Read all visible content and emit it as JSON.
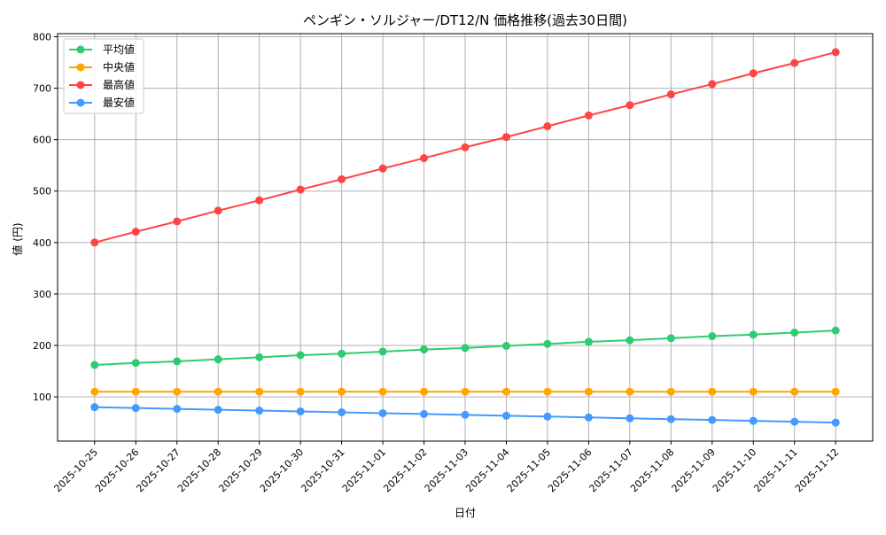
{
  "chart_data": {
    "type": "line",
    "title": "ペンギン・ソルジャー/DT12/N 価格推移(過去30日間)",
    "xlabel": "日付",
    "ylabel": "値 (円)",
    "categories": [
      "2025-10-25",
      "2025-10-26",
      "2025-10-27",
      "2025-10-28",
      "2025-10-29",
      "2025-10-30",
      "2025-10-31",
      "2025-11-01",
      "2025-11-02",
      "2025-11-03",
      "2025-11-04",
      "2025-11-05",
      "2025-11-06",
      "2025-11-07",
      "2025-11-08",
      "2025-11-09",
      "2025-11-10",
      "2025-11-11",
      "2025-11-12"
    ],
    "ylim": [
      14,
      806
    ],
    "yticks": [
      100,
      200,
      300,
      400,
      500,
      600,
      700,
      800
    ],
    "grid": true,
    "legend_position": "top-left",
    "series": [
      {
        "name": "平均値",
        "color": "#2ecc71",
        "values": [
          162,
          166,
          169,
          173,
          177,
          181,
          184,
          188,
          192,
          195,
          199,
          203,
          207,
          210,
          214,
          218,
          221,
          225,
          229
        ]
      },
      {
        "name": "中央値",
        "color": "#ffa500",
        "values": [
          110,
          110,
          110,
          110,
          110,
          110,
          110,
          110,
          110,
          110,
          110,
          110,
          110,
          110,
          110,
          110,
          110,
          110,
          110
        ]
      },
      {
        "name": "最高値",
        "color": "#ff4444",
        "values": [
          400,
          421,
          441,
          462,
          482,
          503,
          523,
          544,
          564,
          585,
          605,
          626,
          647,
          667,
          688,
          708,
          729,
          749,
          770
        ]
      },
      {
        "name": "最安値",
        "color": "#4499ff",
        "values": [
          80,
          78.3,
          76.7,
          75,
          73.3,
          71.7,
          70,
          68.3,
          66.7,
          65,
          63.3,
          61.7,
          60,
          58.3,
          56.7,
          55,
          53.3,
          51.7,
          50
        ]
      }
    ]
  }
}
